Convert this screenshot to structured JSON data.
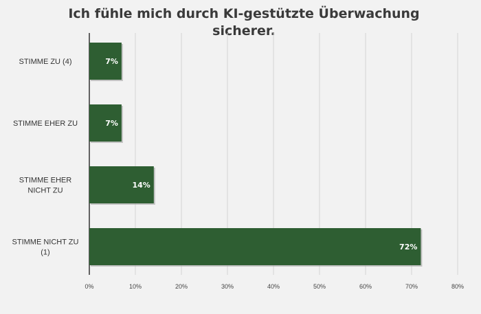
{
  "chart_data": {
    "type": "bar",
    "orientation": "horizontal",
    "title": "Ich fühle mich durch KI-gestützte Überwachung sicherer.",
    "title_lines": [
      "Ich fühle mich durch KI-gestützte Überwachung",
      "sicherer."
    ],
    "categories": [
      [
        "STIMME ZU (4)"
      ],
      [
        "STIMME EHER ZU"
      ],
      [
        "STIMME EHER",
        "NICHT ZU"
      ],
      [
        "STIMME NICHT ZU",
        "(1)"
      ]
    ],
    "values": [
      7,
      7,
      14,
      72
    ],
    "value_labels": [
      "7%",
      "7%",
      "14%",
      "72%"
    ],
    "xlim": [
      0,
      80
    ],
    "xticks": [
      0,
      10,
      20,
      30,
      40,
      50,
      60,
      70,
      80
    ],
    "xtick_labels": [
      "0%",
      "10%",
      "20%",
      "30%",
      "40%",
      "50%",
      "60%",
      "70%",
      "80%"
    ],
    "grid": true,
    "legend": "none",
    "colors": {
      "bar": "#2e5e32",
      "bar_shadow": "#9a9a9a",
      "background": "#f2f2f2",
      "grid": "#d4d4d4",
      "axis": "#333333"
    }
  }
}
